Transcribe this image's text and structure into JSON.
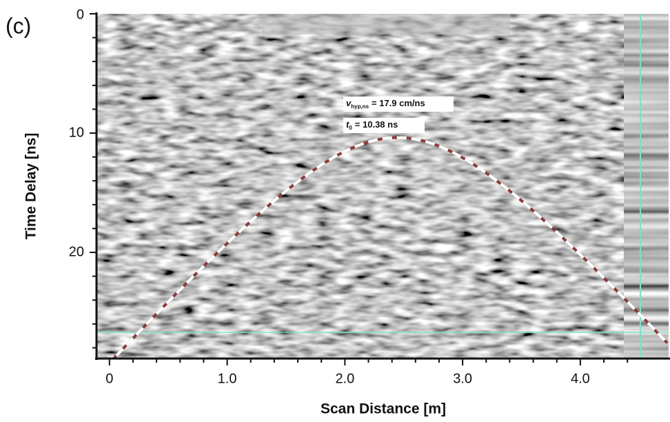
{
  "chart_data": {
    "type": "radargram",
    "panel_label": "(c)",
    "x_label": "Scan Distance [m]",
    "y_label": "Time Delay [ns]",
    "xlim": [
      -0.11,
      4.75
    ],
    "ylim": [
      0,
      28.9
    ],
    "xticks": [
      0,
      {
        "value": 1,
        "label": "1.0"
      },
      {
        "value": 2,
        "label": "2.0"
      },
      {
        "value": 3,
        "label": "3.0"
      },
      {
        "value": 4,
        "label": "4.0"
      }
    ],
    "xticks_minor": [
      0.2,
      0.4,
      0.6,
      0.8,
      1.2,
      1.4,
      1.6,
      1.8,
      2.2,
      2.4,
      2.6,
      2.8,
      3.2,
      3.4,
      3.6,
      3.8,
      4.2,
      4.4
    ],
    "yticks": [
      0,
      10,
      20
    ],
    "yticks_minor": [
      2,
      4,
      6,
      8,
      12,
      14,
      16,
      18,
      22,
      24,
      26,
      28
    ],
    "hyperbola": {
      "x0": 2.45,
      "t0": 10.38,
      "velocity": 17.9
    },
    "annotations": [
      {
        "symbol": "v",
        "subscript": "hyp,ns",
        "text": "= 17.9 cm/ns"
      },
      {
        "symbol": "t",
        "subscript": "0",
        "text": "= 10.38 ns"
      }
    ],
    "reference_lines": {
      "x": 4.51,
      "t": 26.7,
      "color": "#7fe0c8"
    }
  }
}
